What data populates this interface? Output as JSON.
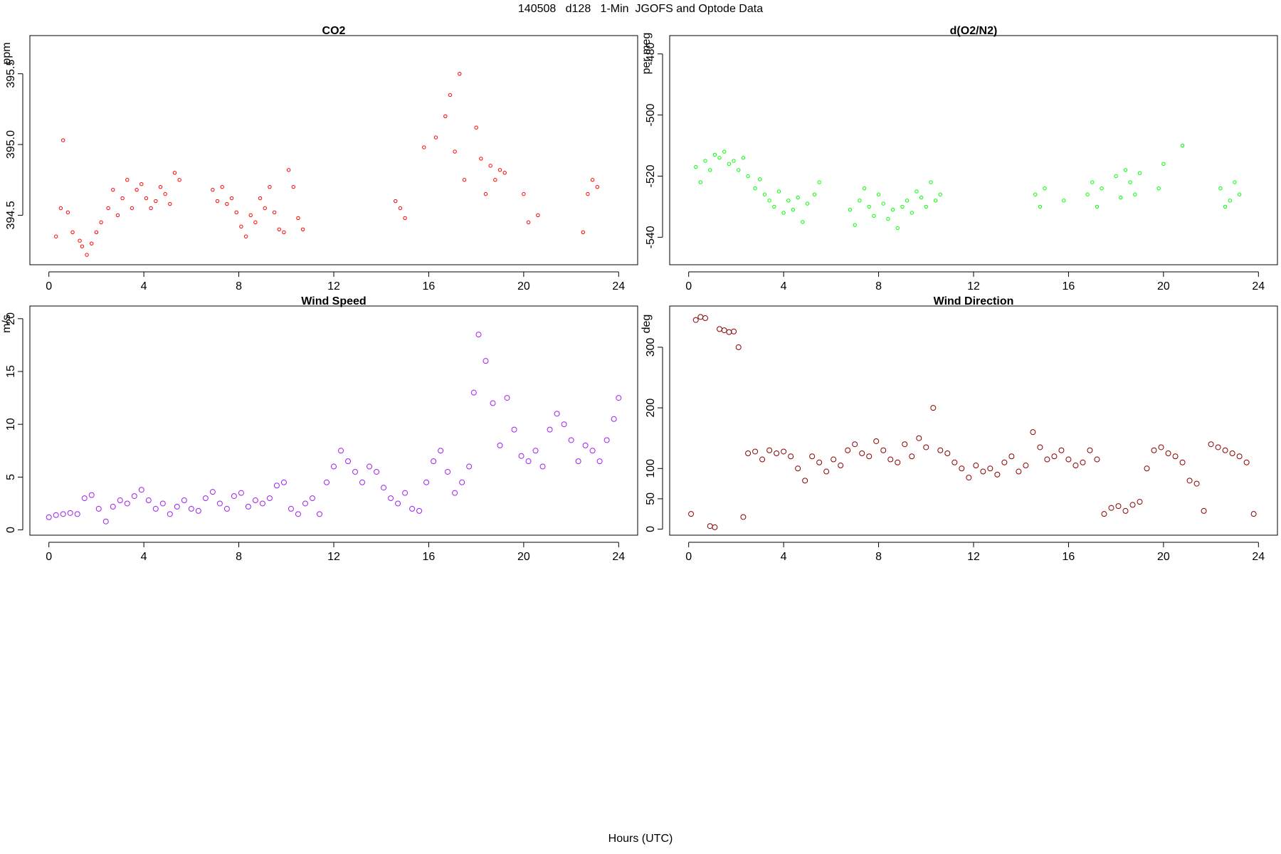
{
  "title": "140508   d128   1-Min  JGOFS and Optode Data",
  "xlabel": "Hours (UTC)",
  "chart_data": [
    {
      "type": "scatter",
      "title": "CO2",
      "ylabel": "ppm",
      "color": "#ff0000",
      "marker": "small-open-circle",
      "xlim": [
        -0.8,
        24.8
      ],
      "ylim": [
        394.15,
        395.77
      ],
      "xticks": [
        0,
        4,
        8,
        12,
        16,
        20,
        24
      ],
      "yticks": [
        394.5,
        395.0,
        395.5
      ],
      "ytick_labels": [
        "394.5",
        "395.0",
        "395.5"
      ],
      "series": [
        {
          "x": [
            0.3,
            0.5,
            0.6,
            0.8,
            1.0,
            1.3,
            1.4,
            1.6,
            1.8,
            2.0,
            2.2,
            2.5,
            2.7,
            2.9,
            3.1,
            3.3,
            3.5,
            3.7,
            3.9,
            4.1,
            4.3,
            4.5,
            4.7,
            4.9,
            5.1,
            5.3,
            5.5,
            6.9,
            7.1,
            7.3,
            7.5,
            7.7,
            7.9,
            8.1,
            8.3,
            8.5,
            8.7,
            8.9,
            9.1,
            9.3,
            9.5,
            9.7,
            9.9,
            10.1,
            10.3,
            10.5,
            10.7,
            14.6,
            14.8,
            15.0,
            15.8,
            16.3,
            16.7,
            16.9,
            17.1,
            17.3,
            17.5,
            18.0,
            18.2,
            18.4,
            18.6,
            18.8,
            19.0,
            19.2,
            20.0,
            20.2,
            20.6,
            22.5,
            22.7,
            22.9,
            23.1
          ],
          "y": [
            394.35,
            394.55,
            395.03,
            394.52,
            394.38,
            394.32,
            394.28,
            394.22,
            394.3,
            394.38,
            394.45,
            394.55,
            394.68,
            394.5,
            394.62,
            394.75,
            394.55,
            394.68,
            394.72,
            394.62,
            394.55,
            394.6,
            394.7,
            394.65,
            394.58,
            394.8,
            394.75,
            394.68,
            394.6,
            394.7,
            394.58,
            394.62,
            394.52,
            394.42,
            394.35,
            394.5,
            394.45,
            394.62,
            394.55,
            394.7,
            394.52,
            394.4,
            394.38,
            394.82,
            394.7,
            394.48,
            394.4,
            394.6,
            394.55,
            394.48,
            394.98,
            395.05,
            395.2,
            395.35,
            394.95,
            395.5,
            394.75,
            395.12,
            394.9,
            394.65,
            394.85,
            394.75,
            394.82,
            394.8,
            394.65,
            394.45,
            394.5,
            394.38,
            394.65,
            394.75,
            394.7
          ]
        }
      ]
    },
    {
      "type": "scatter",
      "title": "d(O2/N2)",
      "ylabel": "per meg",
      "color": "#00ff00",
      "marker": "small-open-circle",
      "xlim": [
        -0.8,
        24.8
      ],
      "ylim": [
        -549,
        -474
      ],
      "xticks": [
        0,
        4,
        8,
        12,
        16,
        20,
        24
      ],
      "yticks": [
        -540,
        -520,
        -500,
        -480
      ],
      "ytick_labels": [
        "-540",
        "-520",
        "-500",
        "-480"
      ],
      "series": [
        {
          "x": [
            0.3,
            0.5,
            0.7,
            0.9,
            1.1,
            1.3,
            1.5,
            1.7,
            1.9,
            2.1,
            2.3,
            2.5,
            2.8,
            3.0,
            3.2,
            3.4,
            3.6,
            3.8,
            4.0,
            4.2,
            4.4,
            4.6,
            4.8,
            5.0,
            5.3,
            5.5,
            6.8,
            7.0,
            7.2,
            7.4,
            7.6,
            7.8,
            8.0,
            8.2,
            8.4,
            8.6,
            8.8,
            9.0,
            9.2,
            9.4,
            9.6,
            9.8,
            10.0,
            10.2,
            10.4,
            10.6,
            14.6,
            14.8,
            15.0,
            15.8,
            16.8,
            17.0,
            17.2,
            17.4,
            18.0,
            18.2,
            18.4,
            18.6,
            18.8,
            19.0,
            19.8,
            20.0,
            20.8,
            22.4,
            22.6,
            22.8,
            23.0,
            23.2
          ],
          "y": [
            -517,
            -522,
            -515,
            -518,
            -513,
            -514,
            -512,
            -516,
            -515,
            -518,
            -514,
            -520,
            -524,
            -521,
            -526,
            -528,
            -530,
            -525,
            -532,
            -528,
            -531,
            -527,
            -535,
            -529,
            -526,
            -522,
            -531,
            -536,
            -528,
            -524,
            -530,
            -533,
            -526,
            -529,
            -534,
            -531,
            -537,
            -530,
            -528,
            -532,
            -525,
            -527,
            -530,
            -522,
            -528,
            -526,
            -526,
            -530,
            -524,
            -528,
            -526,
            -522,
            -530,
            -524,
            -520,
            -527,
            -518,
            -522,
            -526,
            -519,
            -524,
            -516,
            -510,
            -524,
            -530,
            -528,
            -522,
            -526
          ]
        }
      ]
    },
    {
      "type": "scatter",
      "title": "Wind Speed",
      "ylabel": "m/s",
      "color": "#a020f0",
      "marker": "open-circle",
      "xlim": [
        -0.8,
        24.8
      ],
      "ylim": [
        -0.5,
        21.2
      ],
      "xticks": [
        0,
        4,
        8,
        12,
        16,
        20,
        24
      ],
      "yticks": [
        0,
        5,
        10,
        15,
        20
      ],
      "ytick_labels": [
        "0",
        "5",
        "10",
        "15",
        "20"
      ],
      "series": [
        {
          "x": [
            0.0,
            0.3,
            0.6,
            0.9,
            1.2,
            1.5,
            1.8,
            2.1,
            2.4,
            2.7,
            3.0,
            3.3,
            3.6,
            3.9,
            4.2,
            4.5,
            4.8,
            5.1,
            5.4,
            5.7,
            6.0,
            6.3,
            6.6,
            6.9,
            7.2,
            7.5,
            7.8,
            8.1,
            8.4,
            8.7,
            9.0,
            9.3,
            9.6,
            9.9,
            10.2,
            10.5,
            10.8,
            11.1,
            11.4,
            11.7,
            12.0,
            12.3,
            12.6,
            12.9,
            13.2,
            13.5,
            13.8,
            14.1,
            14.4,
            14.7,
            15.0,
            15.3,
            15.6,
            15.9,
            16.2,
            16.5,
            16.8,
            17.1,
            17.4,
            17.7,
            17.9,
            18.1,
            18.4,
            18.7,
            19.0,
            19.3,
            19.6,
            19.9,
            20.2,
            20.5,
            20.8,
            21.1,
            21.4,
            21.7,
            22.0,
            22.3,
            22.6,
            22.9,
            23.2,
            23.5,
            23.8,
            24.0
          ],
          "y": [
            1.2,
            1.4,
            1.5,
            1.6,
            1.5,
            3.0,
            3.3,
            2.0,
            0.8,
            2.2,
            2.8,
            2.5,
            3.2,
            3.8,
            2.8,
            2.0,
            2.5,
            1.5,
            2.2,
            2.8,
            2.0,
            1.8,
            3.0,
            3.6,
            2.5,
            2.0,
            3.2,
            3.5,
            2.2,
            2.8,
            2.5,
            3.0,
            4.2,
            4.5,
            2.0,
            1.5,
            2.5,
            3.0,
            1.5,
            4.5,
            6.0,
            7.5,
            6.5,
            5.5,
            4.5,
            6.0,
            5.5,
            4.0,
            3.0,
            2.5,
            3.5,
            2.0,
            1.8,
            4.5,
            6.5,
            7.5,
            5.5,
            3.5,
            4.5,
            6.0,
            13.0,
            18.5,
            16.0,
            12.0,
            8.0,
            12.5,
            9.5,
            7.0,
            6.5,
            7.5,
            6.0,
            9.5,
            11.0,
            10.0,
            8.5,
            6.5,
            8.0,
            7.5,
            6.5,
            8.5,
            10.5,
            12.5
          ]
        }
      ]
    },
    {
      "type": "scatter",
      "title": "Wind Direction",
      "ylabel": "deg",
      "color": "#8b0000",
      "marker": "open-circle",
      "xlim": [
        -0.8,
        24.8
      ],
      "ylim": [
        -10,
        368
      ],
      "xticks": [
        0,
        4,
        8,
        12,
        16,
        20,
        24
      ],
      "yticks": [
        0,
        50,
        100,
        200,
        300
      ],
      "ytick_labels": [
        "0",
        "50",
        "100",
        "200",
        "300"
      ],
      "series": [
        {
          "x": [
            0.1,
            0.3,
            0.5,
            0.7,
            0.9,
            1.1,
            1.3,
            1.5,
            1.7,
            1.9,
            2.1,
            2.3,
            2.5,
            2.8,
            3.1,
            3.4,
            3.7,
            4.0,
            4.3,
            4.6,
            4.9,
            5.2,
            5.5,
            5.8,
            6.1,
            6.4,
            6.7,
            7.0,
            7.3,
            7.6,
            7.9,
            8.2,
            8.5,
            8.8,
            9.1,
            9.4,
            9.7,
            10.0,
            10.3,
            10.6,
            10.9,
            11.2,
            11.5,
            11.8,
            12.1,
            12.4,
            12.7,
            13.0,
            13.3,
            13.6,
            13.9,
            14.2,
            14.5,
            14.8,
            15.1,
            15.4,
            15.7,
            16.0,
            16.3,
            16.6,
            16.9,
            17.2,
            17.5,
            17.8,
            18.1,
            18.4,
            18.7,
            19.0,
            19.3,
            19.6,
            19.9,
            20.2,
            20.5,
            20.8,
            21.1,
            21.4,
            21.7,
            22.0,
            22.3,
            22.6,
            22.9,
            23.2,
            23.5,
            23.8
          ],
          "y": [
            25,
            345,
            350,
            348,
            5,
            3,
            330,
            328,
            325,
            326,
            300,
            20,
            125,
            128,
            115,
            130,
            125,
            128,
            120,
            100,
            80,
            120,
            110,
            95,
            115,
            105,
            130,
            140,
            125,
            120,
            145,
            130,
            115,
            110,
            140,
            120,
            150,
            135,
            200,
            130,
            125,
            110,
            100,
            85,
            105,
            95,
            100,
            90,
            110,
            120,
            95,
            105,
            160,
            135,
            115,
            120,
            130,
            115,
            105,
            110,
            130,
            115,
            25,
            35,
            38,
            30,
            40,
            45,
            100,
            130,
            135,
            125,
            120,
            110,
            80,
            75,
            30,
            140,
            135,
            130,
            125,
            120,
            110,
            25
          ]
        }
      ]
    }
  ]
}
